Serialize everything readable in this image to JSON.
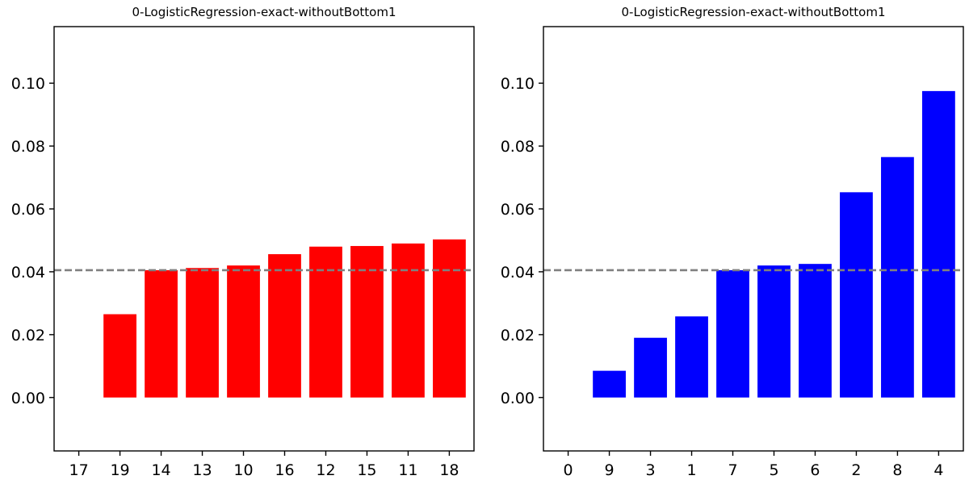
{
  "chart_data": [
    {
      "type": "bar",
      "title": "0-LogisticRegression-exact-withoutBottom1",
      "xlabel": "",
      "ylabel": "",
      "categories": [
        "17",
        "19",
        "14",
        "13",
        "10",
        "16",
        "12",
        "15",
        "11",
        "18"
      ],
      "values": [
        0.0,
        0.0265,
        0.0405,
        0.0412,
        0.042,
        0.0456,
        0.048,
        0.0482,
        0.049,
        0.0503
      ],
      "color": "#ff0000",
      "ylim": [
        -0.017,
        0.118
      ],
      "yticks": [
        "0.00",
        "0.02",
        "0.04",
        "0.06",
        "0.08",
        "0.10"
      ],
      "ytick_values": [
        0.0,
        0.02,
        0.04,
        0.06,
        0.08,
        0.1
      ],
      "reference_line": {
        "value": 0.0405,
        "color": "#808080",
        "style": "dashed"
      },
      "grid": false,
      "legend": "none"
    },
    {
      "type": "bar",
      "title": "0-LogisticRegression-exact-withoutBottom1",
      "xlabel": "",
      "ylabel": "",
      "categories": [
        "0",
        "9",
        "3",
        "1",
        "7",
        "5",
        "6",
        "2",
        "8",
        "4"
      ],
      "values": [
        0.0,
        0.0085,
        0.019,
        0.0258,
        0.0405,
        0.042,
        0.0425,
        0.0653,
        0.0765,
        0.0975
      ],
      "color": "#0000ff",
      "ylim": [
        -0.017,
        0.118
      ],
      "yticks": [
        "0.00",
        "0.02",
        "0.04",
        "0.06",
        "0.08",
        "0.10"
      ],
      "ytick_values": [
        0.0,
        0.02,
        0.04,
        0.06,
        0.08,
        0.1
      ],
      "reference_line": {
        "value": 0.0405,
        "color": "#808080",
        "style": "dashed"
      },
      "grid": false,
      "legend": "none"
    }
  ]
}
